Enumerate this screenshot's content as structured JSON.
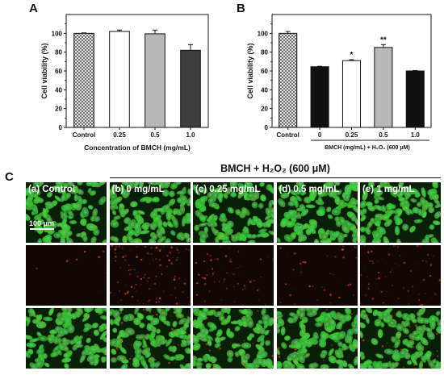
{
  "panels": {
    "a": "A",
    "b": "B",
    "c": "C"
  },
  "colors": {
    "bar_black": "#111111",
    "bar_dark_gray": "#3d3d3d",
    "bar_light_gray": "#b8b8b8",
    "bar_white": "#ffffff",
    "cell_green": "#2fb52a",
    "nucleus_blue": "#6fb5a8",
    "red_channel_bg": "#120705",
    "dead_cell_red": "#d0401e"
  },
  "chart_data": [
    {
      "type": "bar",
      "ylabel": "Cell viability (%)",
      "xlabel": "Concentration of BMCH (mg/mL)",
      "ylim": [
        0,
        120
      ],
      "yticks": [
        0,
        20,
        40,
        60,
        80,
        100
      ],
      "categories": [
        "Control",
        "0.25",
        "0.5",
        "1.0"
      ],
      "values": [
        100,
        102,
        99.5,
        82
      ],
      "errors": [
        0.5,
        1.5,
        4,
        6
      ],
      "fills": [
        "hatch",
        "white",
        "light-gray",
        "dark-gray"
      ],
      "significance": [
        "",
        "",
        "",
        ""
      ]
    },
    {
      "type": "bar",
      "ylabel": "Cell viability (%)",
      "xlabel": "BMCH (mg/mL) + H₂O₂ (600 μM)",
      "ylim": [
        0,
        120
      ],
      "yticks": [
        0,
        20,
        40,
        60,
        80,
        100
      ],
      "categories": [
        "Control",
        "0",
        "0.25",
        "0.5",
        "1.0"
      ],
      "values": [
        100,
        64.5,
        71,
        85,
        60
      ],
      "errors": [
        2,
        0.5,
        1,
        3,
        0.5
      ],
      "fills": [
        "hatch",
        "black",
        "white",
        "light-gray",
        "black"
      ],
      "significance": [
        "",
        "",
        "*",
        "**",
        ""
      ]
    }
  ],
  "micrographs": {
    "header": "BMCH + H₂O₂ (600 μM)",
    "scale_bar": "100 μm",
    "columns": [
      {
        "label": "(a) Control",
        "density": 1.0,
        "dead": 0.02
      },
      {
        "label": "(b) 0 mg/mL",
        "density": 0.85,
        "dead": 0.9
      },
      {
        "label": "(c) 0.25 mg/mL",
        "density": 0.9,
        "dead": 0.45
      },
      {
        "label": "(d) 0.5 mg/mL",
        "density": 0.95,
        "dead": 0.3
      },
      {
        "label": "(e) 1 mg/mL",
        "density": 0.88,
        "dead": 0.55
      }
    ],
    "rows": [
      "live",
      "dead",
      "merged"
    ]
  }
}
